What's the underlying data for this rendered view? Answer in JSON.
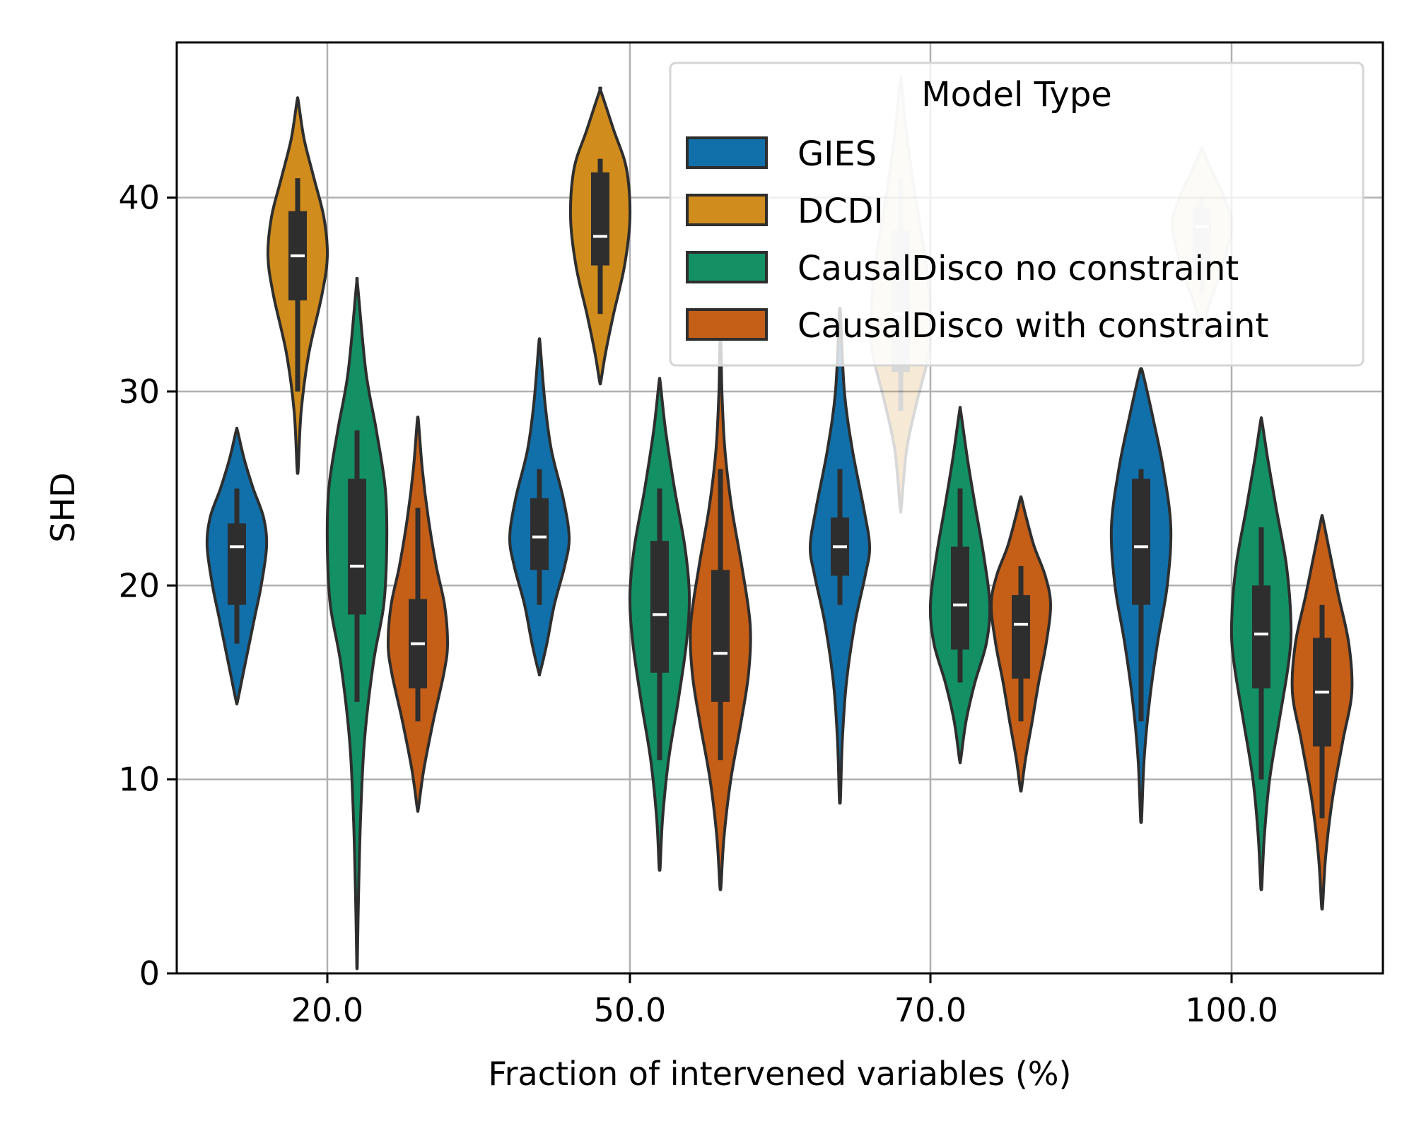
{
  "chart_data": {
    "type": "violin",
    "xlabel": "Fraction of intervened variables (%)",
    "ylabel": "SHD",
    "categories": [
      "20.0",
      "50.0",
      "70.0",
      "100.0"
    ],
    "ylim": [
      0,
      48
    ],
    "yticks": [
      0,
      10,
      20,
      30,
      40
    ],
    "grid": true,
    "legend": {
      "title": "Model Type",
      "placement": "top-right"
    },
    "colors": {
      "GIES": "#1170aa",
      "DCDI": "#d08c1c",
      "CausalDisco no constraint": "#139064",
      "CausalDisco with constraint": "#c55e17",
      "box": "#2e2e2e",
      "median": "#ffffff",
      "grid": "#b0b0b0"
    },
    "series": [
      {
        "name": "GIES",
        "violins": [
          {
            "min": 14,
            "max": 28,
            "q1": 19,
            "median": 22,
            "q3": 23.2,
            "wlo": 17,
            "whi": 25,
            "profile": [
              [
                14,
                0.02
              ],
              [
                15.5,
                0.22
              ],
              [
                17,
                0.42
              ],
              [
                18.5,
                0.62
              ],
              [
                20,
                0.82
              ],
              [
                22,
                1.0
              ],
              [
                23.5,
                0.9
              ],
              [
                25,
                0.55
              ],
              [
                26.5,
                0.25
              ],
              [
                28,
                0.02
              ]
            ]
          },
          {
            "min": 15.5,
            "max": 32.5,
            "q1": 20.8,
            "median": 22.5,
            "q3": 24.5,
            "wlo": 19,
            "whi": 26,
            "profile": [
              [
                15.5,
                0.02
              ],
              [
                17,
                0.25
              ],
              [
                19,
                0.5
              ],
              [
                21,
                0.85
              ],
              [
                22.5,
                1.0
              ],
              [
                24.5,
                0.8
              ],
              [
                27,
                0.4
              ],
              [
                29.5,
                0.18
              ],
              [
                32.5,
                0.02
              ]
            ]
          },
          {
            "min": 9,
            "max": 34,
            "q1": 20.5,
            "median": 22,
            "q3": 23.5,
            "wlo": 19,
            "whi": 26,
            "profile": [
              [
                9,
                0.02
              ],
              [
                12,
                0.08
              ],
              [
                15,
                0.22
              ],
              [
                18,
                0.5
              ],
              [
                20.5,
                0.85
              ],
              [
                22,
                1.0
              ],
              [
                24,
                0.8
              ],
              [
                27,
                0.42
              ],
              [
                30,
                0.15
              ],
              [
                34,
                0.02
              ]
            ]
          },
          {
            "min": 8,
            "max": 31,
            "q1": 19,
            "median": 22,
            "q3": 25.5,
            "wlo": 13,
            "whi": 26,
            "profile": [
              [
                8,
                0.02
              ],
              [
                11,
                0.1
              ],
              [
                14,
                0.28
              ],
              [
                17,
                0.55
              ],
              [
                20,
                0.88
              ],
              [
                23,
                1.0
              ],
              [
                26,
                0.75
              ],
              [
                28.5,
                0.42
              ],
              [
                31,
                0.05
              ]
            ]
          }
        ]
      },
      {
        "name": "DCDI",
        "violins": [
          {
            "min": 26,
            "max": 45,
            "q1": 34.7,
            "median": 37,
            "q3": 39.3,
            "wlo": 30,
            "whi": 41,
            "profile": [
              [
                26,
                0.02
              ],
              [
                29,
                0.12
              ],
              [
                32,
                0.38
              ],
              [
                35,
                0.82
              ],
              [
                37,
                1.0
              ],
              [
                39,
                0.88
              ],
              [
                41,
                0.55
              ],
              [
                43,
                0.22
              ],
              [
                45,
                0.02
              ]
            ]
          },
          {
            "min": 30.5,
            "max": 45.5,
            "q1": 36.5,
            "median": 38,
            "q3": 41.3,
            "wlo": 34,
            "whi": 42,
            "profile": [
              [
                30.5,
                0.02
              ],
              [
                32,
                0.18
              ],
              [
                34,
                0.45
              ],
              [
                36.5,
                0.82
              ],
              [
                39,
                1.0
              ],
              [
                41.5,
                0.88
              ],
              [
                43.5,
                0.45
              ],
              [
                45.5,
                0.02
              ]
            ]
          },
          {
            "min": 24,
            "max": 46,
            "q1": 31,
            "median": 34,
            "q3": 38.3,
            "wlo": 29,
            "whi": 41,
            "profile": [
              [
                24,
                0.02
              ],
              [
                27,
                0.2
              ],
              [
                29.5,
                0.55
              ],
              [
                32,
                0.95
              ],
              [
                34,
                1.0
              ],
              [
                37,
                0.82
              ],
              [
                40,
                0.5
              ],
              [
                43,
                0.22
              ],
              [
                46,
                0.02
              ]
            ]
          },
          {
            "min": 33,
            "max": 42.5,
            "q1": 36,
            "median": 38.5,
            "q3": 39.5,
            "wlo": 35,
            "whi": 40,
            "profile": [
              [
                33,
                0.02
              ],
              [
                34.5,
                0.25
              ],
              [
                36,
                0.6
              ],
              [
                38.5,
                1.0
              ],
              [
                40,
                0.75
              ],
              [
                41.5,
                0.3
              ],
              [
                42.5,
                0.02
              ]
            ]
          }
        ]
      },
      {
        "name": "CausalDisco no constraint",
        "violins": [
          {
            "min": 0.5,
            "max": 35.5,
            "q1": 18.5,
            "median": 21,
            "q3": 25.5,
            "wlo": 14,
            "whi": 28,
            "profile": [
              [
                0.5,
                0.01
              ],
              [
                4,
                0.05
              ],
              [
                8,
                0.12
              ],
              [
                12,
                0.25
              ],
              [
                16,
                0.55
              ],
              [
                19,
                0.9
              ],
              [
                22,
                1.0
              ],
              [
                25,
                0.95
              ],
              [
                28,
                0.65
              ],
              [
                31,
                0.3
              ],
              [
                35.5,
                0.02
              ]
            ]
          },
          {
            "min": 5.5,
            "max": 30.5,
            "q1": 15.5,
            "median": 18.5,
            "q3": 22.3,
            "wlo": 11,
            "whi": 25,
            "profile": [
              [
                5.5,
                0.02
              ],
              [
                8,
                0.1
              ],
              [
                11,
                0.3
              ],
              [
                14,
                0.62
              ],
              [
                17,
                0.9
              ],
              [
                19.5,
                1.0
              ],
              [
                22,
                0.85
              ],
              [
                25,
                0.5
              ],
              [
                28,
                0.2
              ],
              [
                30.5,
                0.02
              ]
            ]
          },
          {
            "min": 11,
            "max": 29,
            "q1": 16.7,
            "median": 19,
            "q3": 22,
            "wlo": 15,
            "whi": 25,
            "profile": [
              [
                11,
                0.02
              ],
              [
                13,
                0.2
              ],
              [
                15,
                0.5
              ],
              [
                17,
                0.88
              ],
              [
                19,
                1.0
              ],
              [
                21.5,
                0.8
              ],
              [
                24,
                0.52
              ],
              [
                26.5,
                0.25
              ],
              [
                29,
                0.02
              ]
            ]
          },
          {
            "min": 4.5,
            "max": 28.5,
            "q1": 14.7,
            "median": 17.5,
            "q3": 20,
            "wlo": 10,
            "whi": 23,
            "profile": [
              [
                4.5,
                0.02
              ],
              [
                7,
                0.1
              ],
              [
                10,
                0.28
              ],
              [
                13,
                0.6
              ],
              [
                16,
                0.92
              ],
              [
                18,
                1.0
              ],
              [
                21,
                0.85
              ],
              [
                24,
                0.5
              ],
              [
                26.5,
                0.22
              ],
              [
                28.5,
                0.02
              ]
            ]
          }
        ]
      },
      {
        "name": "CausalDisco with constraint",
        "violins": [
          {
            "min": 8.5,
            "max": 28.5,
            "q1": 14.7,
            "median": 17,
            "q3": 19.3,
            "wlo": 13,
            "whi": 24,
            "profile": [
              [
                8.5,
                0.02
              ],
              [
                10.5,
                0.2
              ],
              [
                13,
                0.52
              ],
              [
                15.5,
                0.88
              ],
              [
                17,
                1.0
              ],
              [
                19,
                0.9
              ],
              [
                21,
                0.62
              ],
              [
                23.5,
                0.35
              ],
              [
                26,
                0.15
              ],
              [
                28.5,
                0.02
              ]
            ]
          },
          {
            "min": 4.5,
            "max": 32.5,
            "q1": 14,
            "median": 16.5,
            "q3": 20.8,
            "wlo": 11,
            "whi": 26,
            "profile": [
              [
                4.5,
                0.02
              ],
              [
                7,
                0.12
              ],
              [
                10,
                0.35
              ],
              [
                13,
                0.7
              ],
              [
                15.5,
                0.95
              ],
              [
                18,
                1.0
              ],
              [
                21,
                0.72
              ],
              [
                24,
                0.38
              ],
              [
                27,
                0.15
              ],
              [
                30,
                0.05
              ],
              [
                32.5,
                0.02
              ]
            ]
          },
          {
            "min": 9.5,
            "max": 24.5,
            "q1": 15.2,
            "median": 18,
            "q3": 19.5,
            "wlo": 13,
            "whi": 21,
            "profile": [
              [
                9.5,
                0.02
              ],
              [
                11,
                0.15
              ],
              [
                13,
                0.38
              ],
              [
                15,
                0.6
              ],
              [
                17,
                0.85
              ],
              [
                19,
                1.0
              ],
              [
                20.5,
                0.82
              ],
              [
                22,
                0.45
              ],
              [
                23.5,
                0.18
              ],
              [
                24.5,
                0.02
              ]
            ]
          },
          {
            "min": 3.5,
            "max": 23.5,
            "q1": 11.7,
            "median": 14.5,
            "q3": 17.3,
            "wlo": 8,
            "whi": 19,
            "profile": [
              [
                3.5,
                0.02
              ],
              [
                6,
                0.12
              ],
              [
                9,
                0.35
              ],
              [
                12,
                0.7
              ],
              [
                14.5,
                1.0
              ],
              [
                17,
                0.9
              ],
              [
                19.5,
                0.55
              ],
              [
                22,
                0.22
              ],
              [
                23.5,
                0.02
              ]
            ]
          }
        ]
      }
    ],
    "faded_violins": [
      {
        "series": "DCDI",
        "category": "70.0"
      },
      {
        "series": "DCDI",
        "category": "100.0"
      }
    ]
  }
}
